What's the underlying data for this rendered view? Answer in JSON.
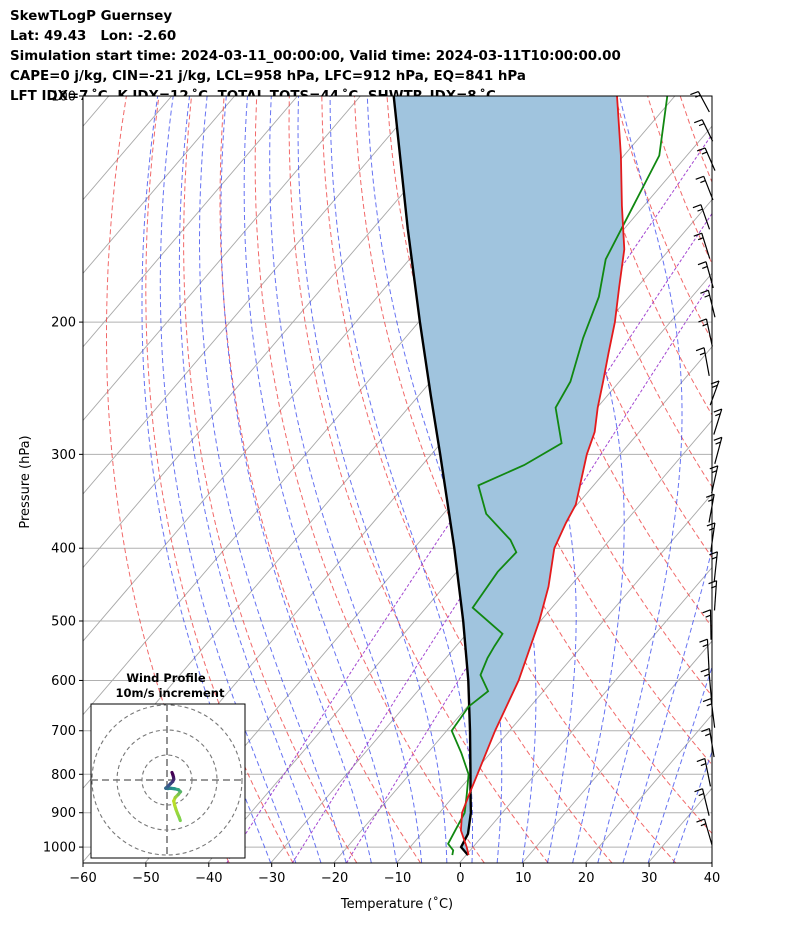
{
  "header": {
    "line1": "SkewTLogP Guernsey",
    "line2": "Lat: 49.43   Lon: -2.60",
    "line3": "Simulation start time: 2024-03-11_00:00:00, Valid time: 2024-03-11T10:00:00.00",
    "line4": "CAPE=0 j/kg, CIN=-21 j/kg, LCL=958 hPa, LFC=912 hPa, EQ=841 hPa",
    "line5": "LFT IDX=7 ˚C, K IDX=12 ˚C, TOTAL TOTS=44 ˚C, SHWTR_IDX=8 ˚C"
  },
  "chart_data": [
    {
      "type": "skewt",
      "ylabel": "Pressure (hPa)",
      "xlabel": "Temperature (˚C)",
      "xlim": [
        -60,
        40
      ],
      "ylim": [
        1050,
        100
      ],
      "y_scale": "log",
      "xticks": [
        "−60",
        "−50",
        "−40",
        "−30",
        "−20",
        "−10",
        "0",
        "10",
        "20",
        "30",
        "40"
      ],
      "yticks": [
        "100",
        "200",
        "300",
        "400",
        "500",
        "600",
        "700",
        "800",
        "900",
        "1000"
      ],
      "grid": true,
      "colors": {
        "temperature": "#e41a1c",
        "dewpoint": "#118811",
        "parcel": "#000000",
        "cape_fill": "#a0c4de",
        "dry_adiabats": "#ee4444",
        "moist_adiabats": "#3344ee",
        "mixing_ratio": "#9933cc",
        "isotherms": "#999999"
      },
      "series": [
        {
          "key": "temperature",
          "points": [
            [
              1025,
              10.4
            ],
            [
              1000,
              9.0
            ],
            [
              950,
              5.8
            ],
            [
              900,
              3.6
            ],
            [
              850,
              2.2
            ],
            [
              800,
              0.8
            ],
            [
              700,
              -2.3
            ],
            [
              600,
              -5.4
            ],
            [
              500,
              -10.2
            ],
            [
              450,
              -13.4
            ],
            [
              400,
              -17.7
            ],
            [
              370,
              -19.3
            ],
            [
              350,
              -20.2
            ],
            [
              300,
              -25.3
            ],
            [
              280,
              -27.1
            ],
            [
              260,
              -29.9
            ],
            [
              240,
              -32.6
            ],
            [
              220,
              -35.6
            ],
            [
              200,
              -38.8
            ],
            [
              180,
              -42.8
            ],
            [
              160,
              -47.2
            ],
            [
              140,
              -53.5
            ],
            [
              120,
              -60.5
            ],
            [
              100,
              -69.2
            ]
          ]
        },
        {
          "key": "dewpoint",
          "points": [
            [
              1025,
              7.8
            ],
            [
              1010,
              7.3
            ],
            [
              990,
              5.6
            ],
            [
              900,
              4.0
            ],
            [
              850,
              1.8
            ],
            [
              800,
              -0.6
            ],
            [
              750,
              -4.6
            ],
            [
              700,
              -9.2
            ],
            [
              650,
              -9.8
            ],
            [
              620,
              -8.8
            ],
            [
              590,
              -12.2
            ],
            [
              560,
              -13.4
            ],
            [
              540,
              -13.9
            ],
            [
              520,
              -14.3
            ],
            [
              480,
              -22.6
            ],
            [
              430,
              -23.5
            ],
            [
              405,
              -23.2
            ],
            [
              390,
              -25.8
            ],
            [
              360,
              -33.2
            ],
            [
              330,
              -38.3
            ],
            [
              310,
              -33.8
            ],
            [
              290,
              -30.8
            ],
            [
              260,
              -36.6
            ],
            [
              240,
              -37.8
            ],
            [
              210,
              -41.7
            ],
            [
              185,
              -44.8
            ],
            [
              165,
              -48.8
            ],
            [
              120,
              -54.4
            ],
            [
              100,
              -61.2
            ]
          ]
        },
        {
          "key": "parcel",
          "points": [
            [
              1025,
              10.3
            ],
            [
              1000,
              8.1
            ],
            [
              960,
              7.4
            ],
            [
              900,
              5.0
            ],
            [
              850,
              2.4
            ],
            [
              800,
              -0.3
            ],
            [
              700,
              -6.3
            ],
            [
              600,
              -13.4
            ],
            [
              500,
              -22.3
            ],
            [
              400,
              -33.6
            ],
            [
              300,
              -48.6
            ],
            [
              250,
              -58.2
            ],
            [
              200,
              -69.8
            ],
            [
              150,
              -84.5
            ],
            [
              100,
              -104.7
            ]
          ]
        }
      ],
      "wind_barbs_count": 26
    },
    {
      "type": "hodograph",
      "title": "Wind Profile",
      "subtitle": "10m/s increment",
      "rings_ms": [
        10,
        20,
        30
      ],
      "points_uv": [
        [
          5.3,
          -16.2
        ],
        [
          4.9,
          -15.0
        ],
        [
          4.2,
          -13.4
        ],
        [
          3.6,
          -11.8
        ],
        [
          3.1,
          -10.2
        ],
        [
          2.7,
          -8.4
        ],
        [
          3.3,
          -7.0
        ],
        [
          4.5,
          -5.8
        ],
        [
          5.4,
          -4.7
        ],
        [
          4.6,
          -3.9
        ],
        [
          3.0,
          -3.5
        ],
        [
          1.4,
          -3.3
        ],
        [
          0.3,
          -3.4
        ],
        [
          -0.5,
          -3.3
        ],
        [
          0.5,
          -2.4
        ],
        [
          1.4,
          -1.5
        ],
        [
          2.3,
          -0.6
        ],
        [
          2.7,
          0.3
        ],
        [
          2.6,
          1.2
        ],
        [
          2.3,
          2.2
        ],
        [
          2.0,
          3.0
        ]
      ]
    }
  ]
}
